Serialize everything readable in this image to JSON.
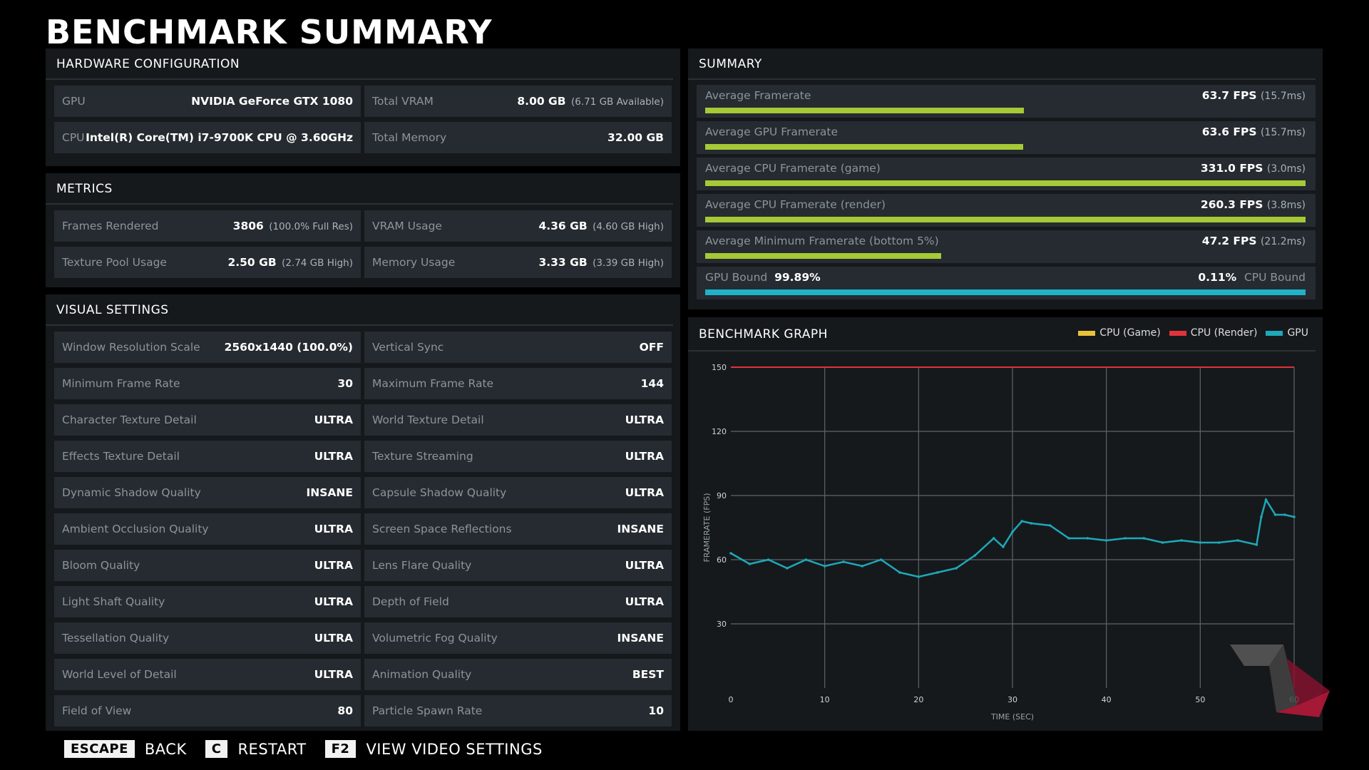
{
  "title": "BENCHMARK SUMMARY",
  "hardware": {
    "header": "HARDWARE CONFIGURATION",
    "rows": [
      {
        "label": "GPU",
        "value": "NVIDIA GeForce GTX 1080",
        "sub": ""
      },
      {
        "label": "Total VRAM",
        "value": "8.00 GB",
        "sub": "(6.71 GB Available)"
      },
      {
        "label": "CPU",
        "value": "Intel(R) Core(TM) i7-9700K CPU @ 3.60GHz",
        "sub": ""
      },
      {
        "label": "Total Memory",
        "value": "32.00 GB",
        "sub": ""
      }
    ]
  },
  "metrics": {
    "header": "METRICS",
    "rows": [
      {
        "label": "Frames Rendered",
        "value": "3806",
        "sub": "(100.0% Full Res)"
      },
      {
        "label": "VRAM Usage",
        "value": "4.36 GB",
        "sub": "(4.60 GB High)"
      },
      {
        "label": "Texture Pool Usage",
        "value": "2.50 GB",
        "sub": "(2.74 GB High)"
      },
      {
        "label": "Memory Usage",
        "value": "3.33 GB",
        "sub": "(3.39 GB High)"
      }
    ]
  },
  "visual": {
    "header": "VISUAL SETTINGS",
    "rows": [
      {
        "label": "Window Resolution Scale",
        "value": "2560x1440 (100.0%)"
      },
      {
        "label": "Vertical Sync",
        "value": "OFF"
      },
      {
        "label": "Minimum Frame Rate",
        "value": "30"
      },
      {
        "label": "Maximum Frame Rate",
        "value": "144"
      },
      {
        "label": "Character Texture Detail",
        "value": "ULTRA"
      },
      {
        "label": "World Texture Detail",
        "value": "ULTRA"
      },
      {
        "label": "Effects Texture Detail",
        "value": "ULTRA"
      },
      {
        "label": "Texture Streaming",
        "value": "ULTRA"
      },
      {
        "label": "Dynamic Shadow Quality",
        "value": "INSANE"
      },
      {
        "label": "Capsule Shadow Quality",
        "value": "ULTRA"
      },
      {
        "label": "Ambient Occlusion Quality",
        "value": "ULTRA"
      },
      {
        "label": "Screen Space Reflections",
        "value": "INSANE"
      },
      {
        "label": "Bloom Quality",
        "value": "ULTRA"
      },
      {
        "label": "Lens Flare Quality",
        "value": "ULTRA"
      },
      {
        "label": "Light Shaft Quality",
        "value": "ULTRA"
      },
      {
        "label": "Depth of Field",
        "value": "ULTRA"
      },
      {
        "label": "Tessellation Quality",
        "value": "ULTRA"
      },
      {
        "label": "Volumetric Fog Quality",
        "value": "INSANE"
      },
      {
        "label": "World Level of Detail",
        "value": "ULTRA"
      },
      {
        "label": "Animation Quality",
        "value": "BEST"
      },
      {
        "label": "Field of View",
        "value": "80"
      },
      {
        "label": "Particle Spawn Rate",
        "value": "10"
      }
    ]
  },
  "summary": {
    "header": "SUMMARY",
    "rows": [
      {
        "label": "Average Framerate",
        "value": "63.7 FPS",
        "sub": "(15.7ms)",
        "fraction": 0.531
      },
      {
        "label": "Average GPU Framerate",
        "value": "63.6 FPS",
        "sub": "(15.7ms)",
        "fraction": 0.53
      },
      {
        "label": "Average CPU Framerate (game)",
        "value": "331.0 FPS",
        "sub": "(3.0ms)",
        "fraction": 1.0
      },
      {
        "label": "Average CPU Framerate (render)",
        "value": "260.3 FPS",
        "sub": "(3.8ms)",
        "fraction": 1.0
      },
      {
        "label": "Average Minimum Framerate (bottom 5%)",
        "value": "47.2 FPS",
        "sub": "(21.2ms)",
        "fraction": 0.393
      }
    ],
    "bound": {
      "gpu_label": "GPU Bound",
      "gpu_value": "99.89%",
      "cpu_value": "0.11%",
      "cpu_label": "CPU Bound",
      "gpu_fraction": 0.9989
    },
    "bar_color": "#a6c936",
    "bound_color": "#1eb3c9"
  },
  "graph": {
    "header": "BENCHMARK GRAPH",
    "legend": [
      {
        "name": "CPU (Game)",
        "color": "#e8c23a"
      },
      {
        "name": "CPU (Render)",
        "color": "#e0333a"
      },
      {
        "name": "GPU",
        "color": "#1ea8b8"
      }
    ]
  },
  "chart_data": {
    "type": "line",
    "xlabel": "TIME (SEC)",
    "ylabel": "FRAMERATE (FPS)",
    "xlim": [
      0,
      60
    ],
    "ylim": [
      0,
      150
    ],
    "x_ticks": [
      "0",
      "10",
      "20",
      "30",
      "40",
      "50",
      "60"
    ],
    "y_ticks": [
      "30",
      "60",
      "90",
      "120",
      "150"
    ],
    "grid": true,
    "series": [
      {
        "name": "CPU (Render)",
        "color": "#e0333a",
        "x": [
          0,
          60
        ],
        "values": [
          150,
          150
        ]
      },
      {
        "name": "GPU",
        "color": "#1ea8b8",
        "x": [
          0,
          2,
          4,
          6,
          8,
          10,
          12,
          14,
          16,
          18,
          20,
          22,
          24,
          26,
          28,
          29,
          30,
          31,
          32,
          34,
          36,
          38,
          40,
          42,
          44,
          46,
          48,
          50,
          52,
          54,
          56,
          56.5,
          57,
          58,
          59,
          60
        ],
        "values": [
          63,
          58,
          60,
          56,
          60,
          57,
          59,
          57,
          60,
          54,
          52,
          54,
          56,
          62,
          70,
          66,
          73,
          78,
          77,
          76,
          70,
          70,
          69,
          70,
          70,
          68,
          69,
          68,
          68,
          69,
          67,
          80,
          88,
          81,
          81,
          80
        ]
      }
    ]
  },
  "footer": {
    "items": [
      {
        "key": "ESCAPE",
        "action": "BACK"
      },
      {
        "key": "C",
        "action": "RESTART"
      },
      {
        "key": "F2",
        "action": "VIEW VIDEO SETTINGS"
      }
    ]
  }
}
